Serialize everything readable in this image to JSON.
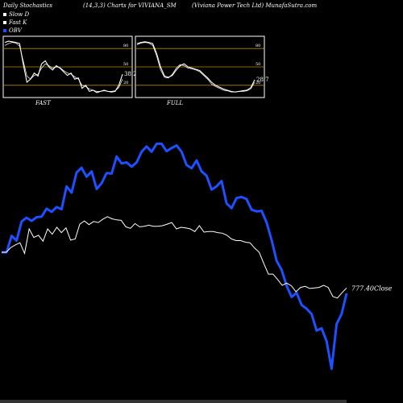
{
  "header": {
    "left": "Daily Stochastics",
    "center": "(14,3,3) Charts for VIVIANA_SM",
    "right": "(Viviana  Power Tech Ltd) MunafaSutra.com"
  },
  "legend": {
    "items": [
      {
        "label": "Slow  D",
        "color": "#ffffff"
      },
      {
        "label": "Fast K",
        "color": "#ffffff"
      },
      {
        "label": "OBV",
        "color": "#1e50ff"
      }
    ]
  },
  "colors": {
    "background": "#000000",
    "obv": "#1e50ff",
    "price": "#ffffff",
    "level": "#b8860b"
  },
  "chart_data": [
    {
      "type": "line",
      "label": "FAST",
      "ylim": [
        0,
        100
      ],
      "levels": [
        80,
        50,
        20
      ],
      "tick_labels": [
        "80",
        "50",
        "20"
      ],
      "last_value_label": "38.23",
      "series": [
        {
          "values": [
            90,
            92,
            91,
            90,
            88,
            55,
            25,
            30,
            40,
            35,
            55,
            60,
            50,
            45,
            52,
            48,
            42,
            36,
            40,
            30,
            32,
            15,
            20,
            10,
            12,
            8,
            10,
            12,
            10,
            9,
            10,
            20,
            38
          ]
        },
        {
          "values": [
            85,
            88,
            90,
            89,
            84,
            60,
            35,
            30,
            36,
            38,
            48,
            55,
            52,
            48,
            50,
            49,
            44,
            40,
            38,
            34,
            30,
            20,
            18,
            14,
            12,
            10,
            10,
            11,
            10,
            10,
            11,
            16,
            30
          ]
        }
      ]
    },
    {
      "type": "line",
      "label": "FULL",
      "ylim": [
        0,
        100
      ],
      "levels": [
        80,
        50,
        20
      ],
      "tick_labels": [
        "80",
        "50",
        "20"
      ],
      "last_value_label": "28.7",
      "series": [
        {
          "values": [
            88,
            90,
            91,
            90,
            88,
            72,
            50,
            35,
            33,
            36,
            45,
            52,
            55,
            50,
            48,
            46,
            44,
            38,
            32,
            25,
            20,
            17,
            14,
            12,
            10,
            9,
            10,
            11,
            12,
            16,
            29
          ]
        },
        {
          "values": [
            86,
            89,
            90,
            89,
            85,
            68,
            45,
            33,
            32,
            38,
            48,
            54,
            52,
            48,
            47,
            45,
            42,
            36,
            30,
            22,
            18,
            15,
            12,
            11,
            9,
            9,
            10,
            10,
            11,
            14,
            25
          ]
        }
      ]
    },
    {
      "type": "line",
      "ylim": [
        700,
        850
      ],
      "last_value_label": "777.40",
      "last_value_suffix": "Close",
      "series": [
        {
          "name": "OBV",
          "values": [
            6,
            6,
            37,
            28,
            64,
            71,
            65,
            72,
            73,
            88,
            82,
            91,
            87,
            130,
            118,
            156,
            165,
            148,
            158,
            125,
            136,
            155,
            154,
            186,
            173,
            175,
            167,
            175,
            195,
            205,
            195,
            210,
            210,
            196,
            202,
            207,
            195,
            170,
            164,
            179,
            158,
            150,
            124,
            130,
            140,
            98,
            89,
            108,
            110,
            106,
            86,
            83,
            84,
            62,
            29,
            -10,
            -27,
            -57,
            -78,
            -70,
            -93,
            -100,
            -110,
            -141,
            -137,
            -161,
            -213,
            -129,
            -110,
            -71
          ]
        },
        {
          "values": [
            6,
            6,
            15,
            20,
            24,
            4,
            50,
            34,
            38,
            27,
            50,
            40,
            53,
            43,
            52,
            29,
            31,
            59,
            65,
            58,
            64,
            62,
            68,
            73,
            69,
            67,
            66,
            54,
            51,
            60,
            54,
            55,
            57,
            55,
            55,
            56,
            59,
            62,
            50,
            53,
            52,
            50,
            45,
            56,
            44,
            45,
            45,
            43,
            42,
            38,
            31,
            28,
            28,
            25,
            24,
            14,
            6,
            -15,
            -35,
            -35,
            -45,
            -56,
            -52,
            -57,
            -68,
            -60,
            -58,
            -62,
            -61,
            -60,
            -56,
            -60,
            -77,
            -80,
            -70,
            -61
          ]
        }
      ]
    }
  ]
}
